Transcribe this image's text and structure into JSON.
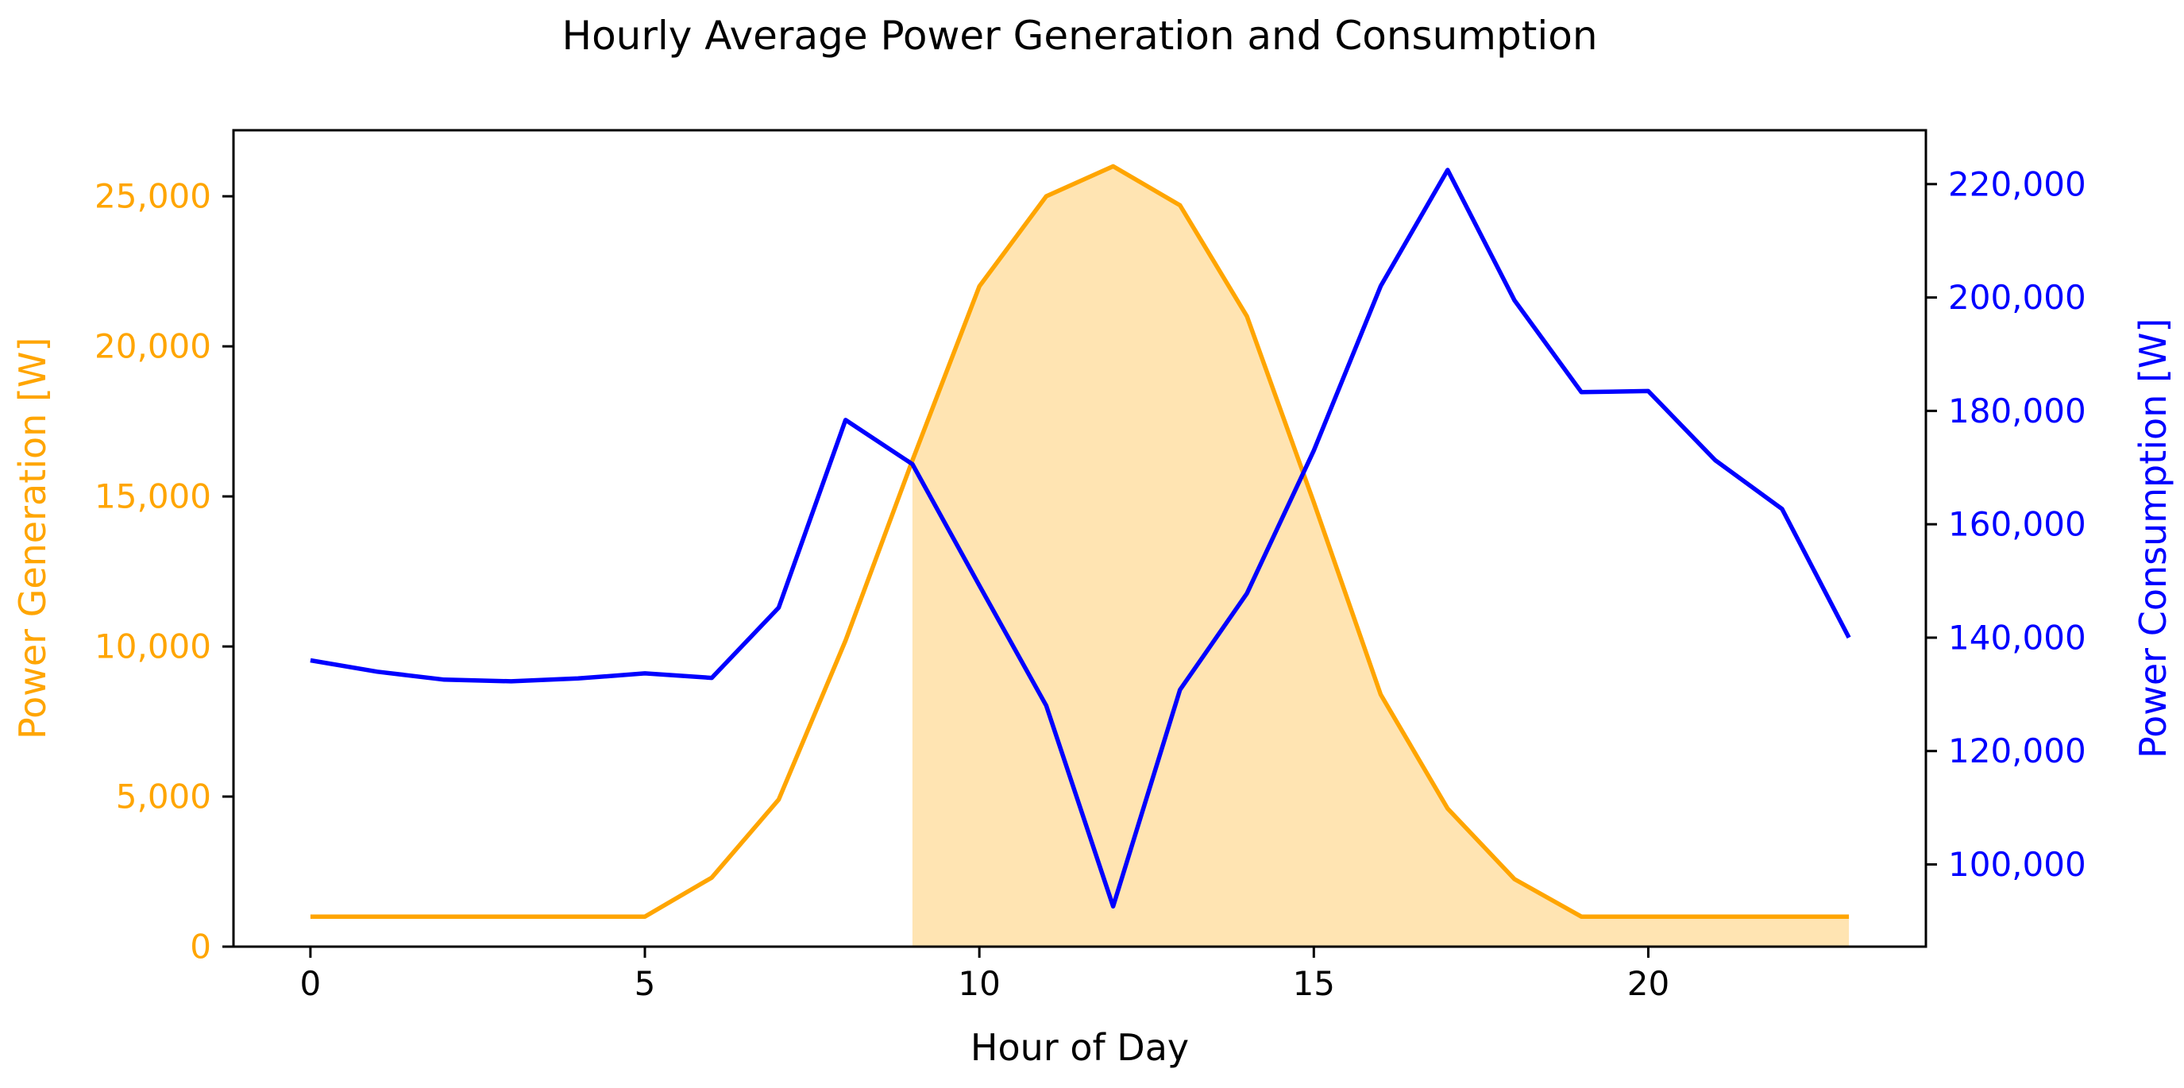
{
  "title": "Hourly Average Power Generation and Consumption",
  "chart_data": {
    "type": "line",
    "title": "Hourly Average Power Generation and Consumption",
    "xlabel": "Hour of Day",
    "ylabel_left": "Power Generation [W]",
    "ylabel_right": "Power Consumption [W]",
    "grid": false,
    "legend": null,
    "background": "#ffffff",
    "spine_color": "#000000",
    "x": [
      0,
      1,
      2,
      3,
      4,
      5,
      6,
      7,
      8,
      9,
      10,
      11,
      12,
      13,
      14,
      15,
      16,
      17,
      18,
      19,
      20,
      21,
      22,
      23
    ],
    "series": [
      {
        "name": "Power Generation",
        "axis": "left",
        "color": "#FFA500",
        "line_width": 5.5,
        "values": [
          1000,
          1000,
          1000,
          1000,
          1000,
          1000,
          2300,
          4900,
          10200,
          16200,
          22000,
          25000,
          26000,
          24700,
          21000,
          14800,
          8400,
          4600,
          2250,
          1000,
          1000,
          1000,
          1000,
          1000
        ]
      },
      {
        "name": "Power Consumption",
        "axis": "right",
        "color": "#0000FF",
        "line_width": 5.5,
        "values": [
          136000,
          134000,
          132600,
          132300,
          132800,
          133700,
          132900,
          145300,
          178400,
          170600,
          149200,
          128000,
          92600,
          130800,
          147800,
          173000,
          202000,
          222500,
          199500,
          183300,
          183500,
          171300,
          162700,
          140000
        ]
      }
    ],
    "fill": {
      "series": "Power Generation",
      "from_hour": 9,
      "to_hour": 23,
      "baseline": 0,
      "color": "#FFA500",
      "opacity": 0.3
    },
    "axes": {
      "x": {
        "range": [
          -1.15,
          24.15
        ],
        "ticks": [
          0,
          5,
          10,
          15,
          20
        ],
        "tick_labels": [
          "0",
          "5",
          "10",
          "15",
          "20"
        ],
        "label_color": "#000000"
      },
      "left": {
        "range": [
          0,
          27200
        ],
        "ticks": [
          0,
          5000,
          10000,
          15000,
          20000,
          25000
        ],
        "tick_labels": [
          "0",
          "5,000",
          "10,000",
          "15,000",
          "20,000",
          "25,000"
        ],
        "label_color": "#FFA500"
      },
      "right": {
        "range": [
          85500,
          229500
        ],
        "ticks": [
          100000,
          120000,
          140000,
          160000,
          180000,
          200000,
          220000
        ],
        "tick_labels": [
          "100,000",
          "120,000",
          "140,000",
          "160,000",
          "180,000",
          "200,000",
          "220,000"
        ],
        "label_color": "#0000FF"
      }
    }
  }
}
